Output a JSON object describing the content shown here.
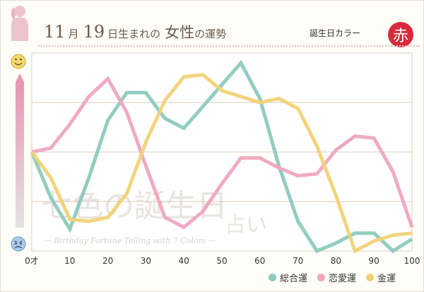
{
  "header": {
    "title_num1": "11",
    "title_month": "月",
    "title_num2": "19",
    "title_rest_a": "日生まれの",
    "title_rest_b": "女性",
    "title_rest_c": "の運勢",
    "birthday_color_label": "誕生日カラー",
    "birthday_color_char": "赤",
    "birthday_color": "#d92a3c"
  },
  "icons": {
    "top": "smiley-face-icon",
    "bottom": "worried-face-icon",
    "header": "woman-silhouette-icon"
  },
  "watermark": {
    "line1": "七色の誕生日",
    "line2": "占い",
    "line3": "— Birthday Fortune Telling with 7 Colors —"
  },
  "chart_data": {
    "type": "line",
    "x": [
      0,
      5,
      10,
      15,
      20,
      25,
      30,
      35,
      40,
      45,
      50,
      55,
      60,
      65,
      70,
      75,
      80,
      85,
      90,
      95,
      100
    ],
    "x_ticks": [
      {
        "value": 0,
        "label": "0才"
      },
      {
        "value": 10,
        "label": "10"
      },
      {
        "value": 20,
        "label": "20"
      },
      {
        "value": 30,
        "label": "30"
      },
      {
        "value": 40,
        "label": "40"
      },
      {
        "value": 50,
        "label": "50"
      },
      {
        "value": 60,
        "label": "60"
      },
      {
        "value": 70,
        "label": "70"
      },
      {
        "value": 80,
        "label": "80"
      },
      {
        "value": 90,
        "label": "90"
      },
      {
        "value": 100,
        "label": "100"
      }
    ],
    "xlim": [
      0,
      100
    ],
    "ylim": [
      0,
      100
    ],
    "grid": true,
    "legend_position": "bottom-right",
    "series": [
      {
        "name": "総合運",
        "color": "#8ccabd",
        "values": [
          50,
          27,
          11,
          37,
          66,
          80,
          80,
          67,
          62,
          73,
          84,
          95,
          77,
          43,
          15,
          0,
          4,
          9,
          9,
          0,
          6
        ]
      },
      {
        "name": "恋愛運",
        "color": "#eea6be",
        "values": [
          50,
          52,
          64,
          78,
          87,
          70,
          43,
          17,
          12,
          20,
          34,
          47,
          47,
          42,
          38,
          39,
          51,
          58,
          57,
          40,
          12
        ]
      },
      {
        "name": "金運",
        "color": "#f1d277",
        "values": [
          50,
          37,
          16,
          15,
          17,
          29,
          55,
          76,
          88,
          89,
          81,
          78,
          75,
          77,
          72,
          53,
          28,
          0,
          5,
          8,
          9
        ]
      }
    ]
  }
}
